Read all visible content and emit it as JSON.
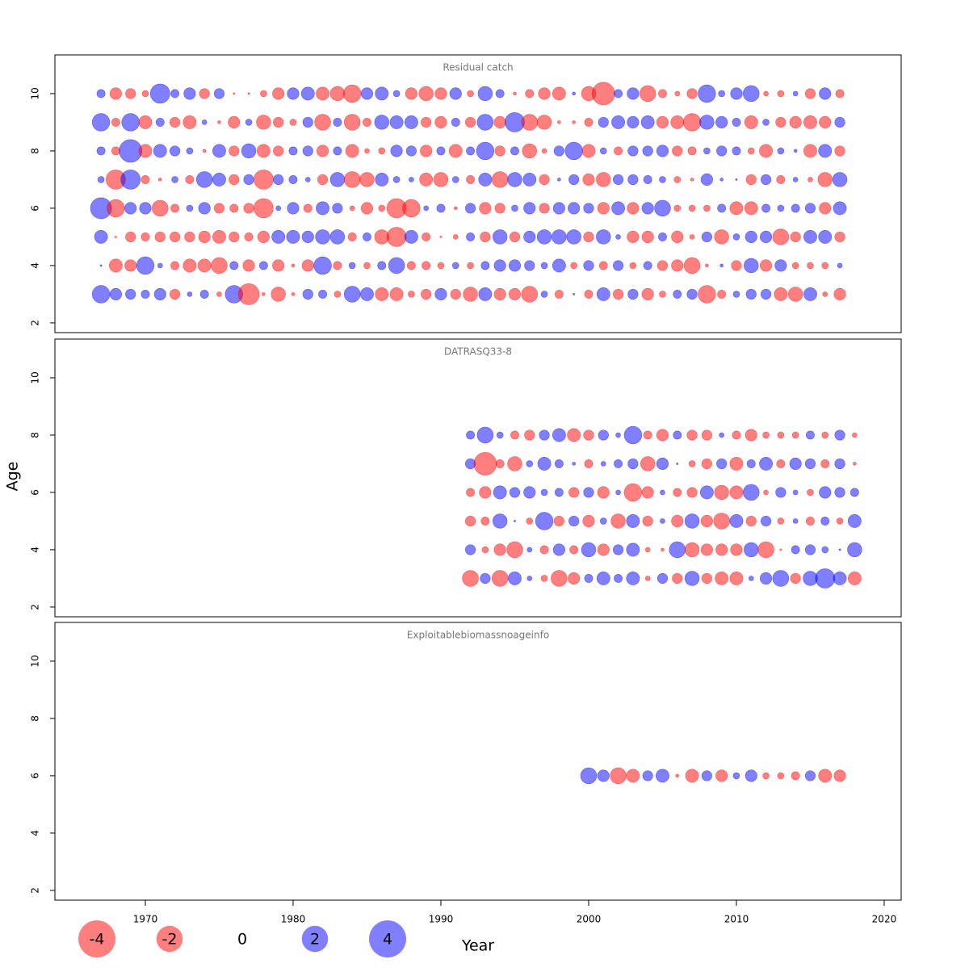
{
  "chart_data": {
    "type": "bubble",
    "x_label": "Year",
    "y_label": "Age",
    "xlim": [
      1963.88,
      2021.15
    ],
    "xticks": [
      1970,
      1980,
      1990,
      2000,
      2010,
      2020
    ],
    "ylim": [
      1.66,
      11.35
    ],
    "yticks": [
      2,
      4,
      6,
      8,
      10
    ],
    "colors": {
      "positive": "#0000ff",
      "negative": "#ff0000"
    },
    "opacity": 0.5,
    "legend": {
      "values": [
        -4,
        -2,
        0,
        2,
        4
      ]
    },
    "panels": [
      {
        "title": "Residual catch",
        "years": [
          1967,
          1968,
          1969,
          1970,
          1971,
          1972,
          1973,
          1974,
          1975,
          1976,
          1977,
          1978,
          1979,
          1980,
          1981,
          1982,
          1983,
          1984,
          1985,
          1986,
          1987,
          1988,
          1989,
          1990,
          1991,
          1992,
          1993,
          1994,
          1995,
          1996,
          1997,
          1998,
          1999,
          2000,
          2001,
          2002,
          2003,
          2004,
          2005,
          2006,
          2007,
          2008,
          2009,
          2010,
          2011,
          2012,
          2013,
          2014,
          2015,
          2016,
          2017
        ],
        "ages": [
          10,
          9,
          8,
          7,
          6,
          5,
          4,
          3
        ],
        "values": [
          [
            0.2,
            -0.4,
            -0.3,
            -0.12,
            1.1,
            0.2,
            0.4,
            -0.3,
            0.3,
            -0.01,
            -0.01,
            -0.12,
            -0.4,
            0.4,
            0.5,
            -0.5,
            -0.6,
            -0.9,
            0.4,
            0.5,
            0.12,
            -0.4,
            -0.6,
            -0.4,
            0.4,
            -0.12,
            0.6,
            0.2,
            -0.03,
            -0.2,
            -0.4,
            -0.5,
            0.03,
            -0.6,
            -1.5,
            0.2,
            0.4,
            -0.75,
            -0.2,
            -0.07,
            -0.3,
            0.9,
            0.12,
            0.4,
            0.75,
            -0.07,
            -0.12,
            0.07,
            -0.3,
            0.4,
            -0.2
          ],
          [
            0.9,
            -0.2,
            0.9,
            -0.5,
            0.2,
            -0.3,
            -0.5,
            0.07,
            -0.03,
            -0.4,
            0.12,
            -0.6,
            -0.3,
            -0.12,
            0.3,
            -0.75,
            0.2,
            -0.75,
            -0.2,
            0.6,
            0.5,
            0.5,
            -0.3,
            -0.4,
            0.2,
            -0.3,
            0.75,
            -0.4,
            1.1,
            -0.75,
            -0.6,
            -0.03,
            -0.03,
            -0.2,
            0.3,
            0.5,
            0.4,
            0.5,
            -0.4,
            -0.5,
            -0.9,
            0.6,
            0.4,
            0.2,
            -0.5,
            0.12,
            -0.3,
            -0.4,
            -0.5,
            -0.4,
            0.3
          ],
          [
            0.2,
            -0.2,
            1.5,
            -0.5,
            0.5,
            0.3,
            0.12,
            -0.03,
            0.5,
            -0.3,
            0.6,
            -0.5,
            -0.3,
            0.2,
            0.3,
            -0.4,
            0.2,
            -0.5,
            -0.07,
            -0.12,
            0.4,
            0.3,
            -0.4,
            0.2,
            -0.5,
            0.2,
            0.9,
            -0.3,
            0.2,
            -0.6,
            -0.07,
            0.3,
            0.9,
            -0.5,
            0.12,
            -0.2,
            0.3,
            0.3,
            0.4,
            -0.3,
            -0.2,
            0.12,
            0.3,
            0.2,
            -0.12,
            -0.5,
            0.12,
            0.03,
            -0.5,
            0.5,
            -0.3
          ],
          [
            0.12,
            -1.1,
            1.1,
            -0.2,
            -0.03,
            0.12,
            -0.2,
            0.75,
            0.5,
            -0.3,
            0.3,
            -1.1,
            0.3,
            0.2,
            0.07,
            -0.3,
            0.6,
            -0.75,
            -0.6,
            0.5,
            0.12,
            0.07,
            -0.5,
            -0.6,
            0.12,
            -0.2,
            0.5,
            -0.75,
            0.6,
            0.5,
            -0.3,
            0.03,
            0.3,
            -0.4,
            -0.6,
            0.3,
            0.3,
            0.2,
            0.12,
            -0.12,
            -0.03,
            0.4,
            0.03,
            0.01,
            -0.3,
            0.3,
            -0.2,
            0.07,
            -0.07,
            -0.6,
            0.6
          ],
          [
            1.3,
            -0.9,
            0.4,
            0.4,
            -0.75,
            -0.2,
            0.12,
            0.4,
            -0.3,
            -0.2,
            -0.3,
            -1.1,
            0.07,
            0.4,
            -0.2,
            0.5,
            0.3,
            -0.07,
            -0.4,
            -0.12,
            -1.1,
            -0.9,
            0.07,
            0.2,
            -0.03,
            0.3,
            -0.4,
            -0.3,
            0.12,
            0.4,
            -0.3,
            0.4,
            0.4,
            0.3,
            -0.4,
            0.5,
            -0.4,
            0.4,
            0.75,
            -0.12,
            -0.12,
            -0.12,
            0.2,
            -0.5,
            -0.5,
            0.2,
            0.12,
            0.2,
            0.3,
            -0.4,
            0.5
          ],
          [
            0.5,
            -0.01,
            -0.3,
            -0.2,
            -0.3,
            -0.3,
            -0.3,
            -0.4,
            -0.5,
            -0.3,
            -0.2,
            -0.4,
            0.5,
            0.5,
            0.4,
            0.6,
            0.6,
            -0.2,
            0.2,
            -0.6,
            -1.1,
            0.5,
            -0.2,
            -0.01,
            -0.07,
            0.2,
            -0.3,
            0.6,
            -0.3,
            0.4,
            0.6,
            0.6,
            0.6,
            -0.3,
            0.6,
            0.07,
            -0.4,
            -0.4,
            0.2,
            -0.4,
            -0.07,
            0.3,
            -0.6,
            0.12,
            0.4,
            0.4,
            -0.75,
            -0.3,
            0.5,
            0.5,
            -0.3
          ],
          [
            0.01,
            -0.5,
            -0.4,
            0.9,
            0.07,
            -0.2,
            -0.5,
            -0.5,
            -0.75,
            0.2,
            -0.4,
            0.2,
            -0.4,
            -0.03,
            -0.4,
            0.9,
            -0.2,
            0.12,
            -0.12,
            0.2,
            0.75,
            -0.2,
            -0.2,
            -0.12,
            0.12,
            -0.12,
            0.2,
            0.4,
            0.4,
            0.3,
            0.12,
            0.5,
            -0.12,
            0.3,
            -0.2,
            0.3,
            -0.12,
            0.2,
            -0.3,
            -0.4,
            -0.75,
            -0.03,
            0.03,
            -0.3,
            0.6,
            -0.4,
            0.4,
            -0.12,
            -0.12,
            -0.12,
            0.07
          ],
          [
            0.9,
            0.4,
            0.3,
            0.2,
            0.4,
            -0.3,
            0.07,
            0.2,
            -0.07,
            0.9,
            -1.3,
            -0.03,
            -0.6,
            -0.03,
            0.3,
            0.2,
            -0.12,
            0.75,
            0.5,
            -0.5,
            -0.5,
            -0.12,
            -0.3,
            0.4,
            -0.3,
            -0.6,
            0.5,
            -0.4,
            -0.4,
            -0.75,
            0.12,
            -0.2,
            0.01,
            -0.2,
            0.5,
            -0.3,
            0.3,
            -0.4,
            -0.12,
            0.2,
            0.3,
            -0.9,
            -0.2,
            0.12,
            0.3,
            0.3,
            -0.5,
            -0.6,
            0.5,
            -0.07,
            -0.4
          ]
        ]
      },
      {
        "title": "DATRASQ33-8",
        "years": [
          1992,
          1993,
          1994,
          1995,
          1996,
          1997,
          1998,
          1999,
          2000,
          2001,
          2002,
          2003,
          2004,
          2005,
          2006,
          2007,
          2008,
          2009,
          2010,
          2011,
          2012,
          2013,
          2014,
          2015,
          2016,
          2017,
          2018
        ],
        "ages": [
          8,
          7,
          6,
          5,
          4,
          3
        ],
        "values": [
          [
            0.2,
            0.75,
            0.12,
            -0.2,
            -0.3,
            0.3,
            0.5,
            -0.5,
            -0.3,
            0.3,
            0.07,
            0.9,
            -0.2,
            -0.4,
            0.2,
            -0.3,
            -0.3,
            0.07,
            -0.2,
            -0.4,
            -0.12,
            -0.12,
            -0.12,
            0.2,
            -0.12,
            0.3,
            -0.07
          ],
          [
            0.3,
            -1.5,
            -0.2,
            -0.6,
            0.12,
            0.5,
            0.2,
            0.03,
            -0.2,
            0.07,
            0.2,
            0.3,
            -0.6,
            0.4,
            0.01,
            -0.12,
            -0.3,
            0.3,
            -0.5,
            0.2,
            0.5,
            -0.2,
            0.4,
            0.3,
            -0.2,
            0.3,
            -0.03
          ],
          [
            -0.2,
            -0.4,
            0.5,
            0.3,
            0.4,
            0.12,
            0.2,
            -0.3,
            0.3,
            -0.4,
            0.07,
            -0.9,
            -0.4,
            0.07,
            -0.2,
            -0.3,
            0.5,
            -0.6,
            -0.5,
            0.75,
            -0.07,
            0.3,
            0.07,
            -0.12,
            0.4,
            0.3,
            0.2
          ],
          [
            -0.3,
            -0.2,
            0.6,
            0.01,
            -0.12,
            0.9,
            -0.3,
            0.3,
            -0.4,
            0.12,
            -0.6,
            0.5,
            -0.3,
            0.07,
            -0.4,
            0.6,
            -0.4,
            -0.75,
            0.5,
            -0.3,
            0.3,
            -0.12,
            0.07,
            -0.2,
            0.2,
            -0.12,
            0.5
          ],
          [
            0.3,
            -0.12,
            -0.4,
            -0.75,
            0.07,
            -0.2,
            0.4,
            -0.2,
            0.6,
            -0.4,
            0.3,
            0.5,
            -0.07,
            -0.03,
            0.75,
            -0.6,
            -0.4,
            -0.4,
            -0.4,
            0.6,
            -0.75,
            -0.01,
            0.2,
            0.3,
            0.12,
            0.01,
            0.6
          ],
          [
            -0.75,
            0.3,
            -0.75,
            0.5,
            0.07,
            -0.12,
            -0.75,
            -0.4,
            0.2,
            0.5,
            0.2,
            0.5,
            -0.07,
            0.3,
            -0.3,
            0.6,
            -0.3,
            -0.5,
            -0.5,
            0.07,
            0.4,
            0.75,
            -0.3,
            0.6,
            1.1,
            0.5,
            -0.5
          ]
        ]
      },
      {
        "title": "Exploitablebiomassnoageinfo",
        "years": [
          2000,
          2001,
          2002,
          2003,
          2004,
          2005,
          2006,
          2007,
          2008,
          2009,
          2010,
          2011,
          2012,
          2013,
          2014,
          2015,
          2016,
          2017
        ],
        "ages": [
          6
        ],
        "values": [
          [
            0.75,
            0.4,
            -0.75,
            -0.5,
            0.3,
            0.5,
            -0.03,
            -0.5,
            0.3,
            -0.4,
            0.12,
            0.4,
            -0.12,
            -0.12,
            -0.2,
            0.3,
            -0.5,
            -0.4
          ]
        ]
      }
    ]
  }
}
